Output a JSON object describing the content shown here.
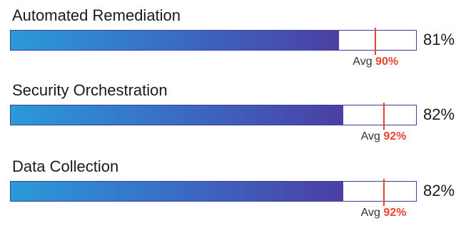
{
  "chart_data": {
    "type": "bar",
    "orientation": "horizontal",
    "xlim": [
      0,
      100
    ],
    "categories": [
      "Automated Remediation",
      "Security Orchestration",
      "Data Collection"
    ],
    "values": [
      81,
      82,
      82
    ],
    "value_labels": [
      "81%",
      "82%",
      "82%"
    ],
    "averages": [
      90,
      92,
      92
    ],
    "average_labels": [
      "90%",
      "92%",
      "92%"
    ],
    "average_prefix": "Avg",
    "colors": {
      "bar_gradient_start": "#2a9ad8",
      "bar_gradient_end": "#4b3fa3",
      "average_marker": "#e8452f",
      "track_border": "#3b3f9a"
    }
  }
}
